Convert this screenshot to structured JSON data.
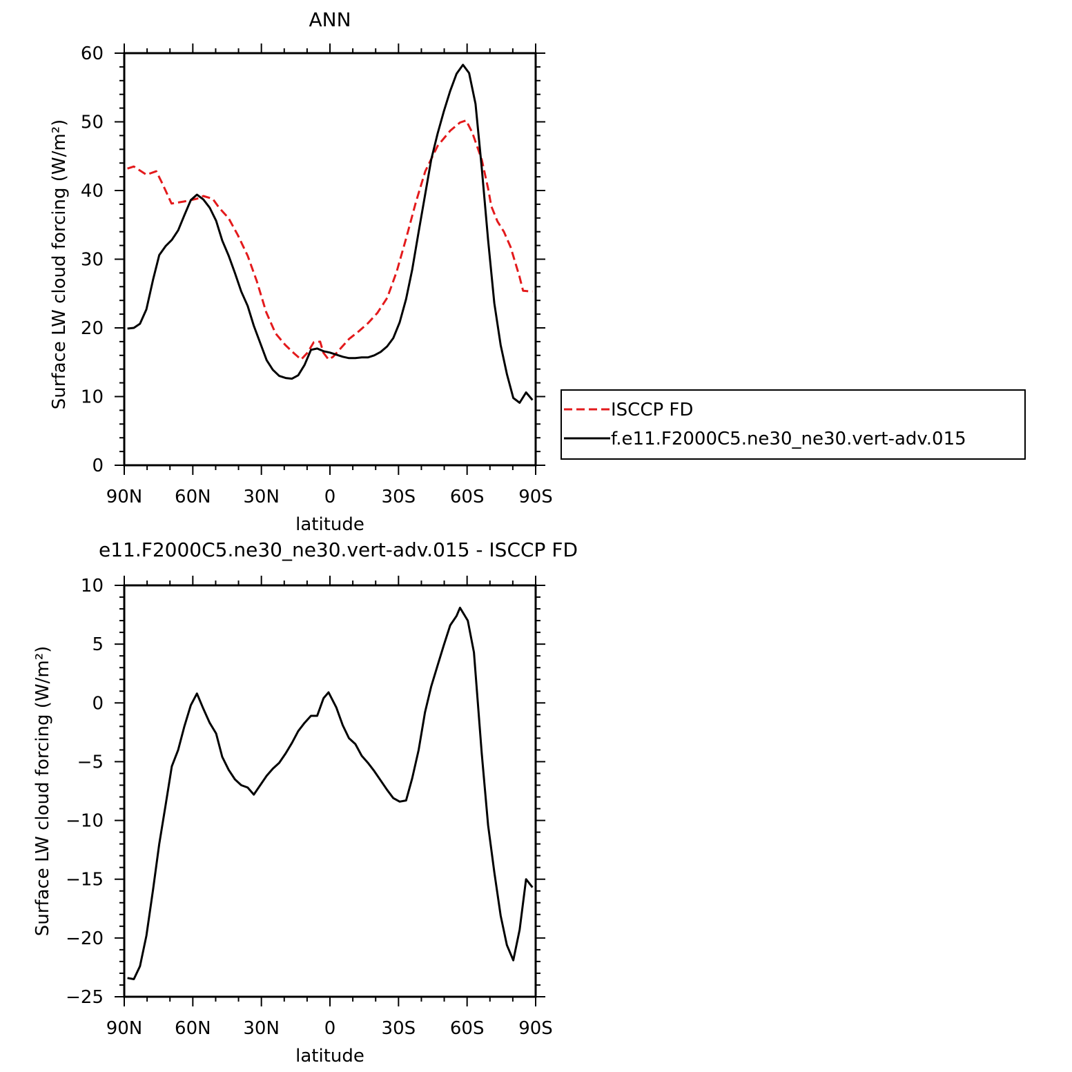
{
  "chart_data": [
    {
      "type": "line",
      "title": "ANN",
      "xlabel": "latitude",
      "ylabel": "Surface LW cloud forcing (W/m²)",
      "xlim": [
        90,
        -90
      ],
      "ylim": [
        0,
        60
      ],
      "x_ticks": [
        {
          "value": 90,
          "label": "90N"
        },
        {
          "value": 60,
          "label": "60N"
        },
        {
          "value": 30,
          "label": "30N"
        },
        {
          "value": 0,
          "label": "0"
        },
        {
          "value": -30,
          "label": "30S"
        },
        {
          "value": -60,
          "label": "60S"
        },
        {
          "value": -90,
          "label": "90S"
        }
      ],
      "y_ticks": [
        {
          "value": 0,
          "label": "0"
        },
        {
          "value": 10,
          "label": "10"
        },
        {
          "value": 20,
          "label": "20"
        },
        {
          "value": 30,
          "label": "30"
        },
        {
          "value": 40,
          "label": "40"
        },
        {
          "value": 50,
          "label": "50"
        },
        {
          "value": 60,
          "label": "60"
        }
      ],
      "legend_position": "right",
      "series": [
        {
          "name": "ISCCP FD",
          "color": "#e31a1c",
          "dash": "dashed",
          "points": [
            [
              88.6,
              43.2
            ],
            [
              85.8,
              43.5
            ],
            [
              80.3,
              42.3
            ],
            [
              76.0,
              42.8
            ],
            [
              73.3,
              41.0
            ],
            [
              69.3,
              38.1
            ],
            [
              63.8,
              38.4
            ],
            [
              58.2,
              38.8
            ],
            [
              55.4,
              39.2
            ],
            [
              51.3,
              38.8
            ],
            [
              48.5,
              37.5
            ],
            [
              44.4,
              36.0
            ],
            [
              40.3,
              33.5
            ],
            [
              36.0,
              30.5
            ],
            [
              32.0,
              26.8
            ],
            [
              27.9,
              22.3
            ],
            [
              23.8,
              19.2
            ],
            [
              19.5,
              17.5
            ],
            [
              15.4,
              16.2
            ],
            [
              12.6,
              15.4
            ],
            [
              9.8,
              16.4
            ],
            [
              7.1,
              17.9
            ],
            [
              4.3,
              18.0
            ],
            [
              2.9,
              16.4
            ],
            [
              0.6,
              15.4
            ],
            [
              -1.4,
              15.8
            ],
            [
              -4.1,
              16.8
            ],
            [
              -8.4,
              18.4
            ],
            [
              -12.6,
              19.5
            ],
            [
              -16.7,
              20.7
            ],
            [
              -20.8,
              22.2
            ],
            [
              -25.1,
              24.4
            ],
            [
              -29.2,
              28.2
            ],
            [
              -33.3,
              33.0
            ],
            [
              -37.6,
              38.3
            ],
            [
              -41.7,
              42.8
            ],
            [
              -47.1,
              46.5
            ],
            [
              -52.6,
              48.7
            ],
            [
              -56.9,
              49.9
            ],
            [
              -59.6,
              50.2
            ],
            [
              -62.3,
              48.4
            ],
            [
              -66.4,
              44.5
            ],
            [
              -69.2,
              40.3
            ],
            [
              -70.6,
              37.7
            ],
            [
              -73.3,
              35.5
            ],
            [
              -76.1,
              34.0
            ],
            [
              -79.0,
              31.8
            ],
            [
              -82.9,
              27.5
            ],
            [
              -84.5,
              25.4
            ],
            [
              -88.6,
              25.3
            ]
          ]
        },
        {
          "name": "f.e11.F2000C5.ne30_ne30.vert-adv.015",
          "color": "#000000",
          "dash": "solid",
          "points": [
            [
              88.6,
              19.9
            ],
            [
              85.8,
              20.0
            ],
            [
              83.1,
              20.6
            ],
            [
              80.3,
              22.7
            ],
            [
              77.4,
              27.0
            ],
            [
              74.7,
              30.6
            ],
            [
              71.9,
              31.9
            ],
            [
              69.2,
              32.8
            ],
            [
              66.4,
              34.2
            ],
            [
              63.7,
              36.4
            ],
            [
              60.9,
              38.6
            ],
            [
              58.2,
              39.4
            ],
            [
              55.4,
              38.7
            ],
            [
              52.6,
              37.5
            ],
            [
              49.8,
              35.6
            ],
            [
              47.1,
              32.7
            ],
            [
              44.3,
              30.5
            ],
            [
              41.6,
              28.0
            ],
            [
              38.8,
              25.3
            ],
            [
              36.0,
              23.2
            ],
            [
              33.3,
              20.3
            ],
            [
              30.5,
              17.8
            ],
            [
              27.7,
              15.3
            ],
            [
              25.0,
              13.9
            ],
            [
              22.2,
              13.0
            ],
            [
              19.4,
              12.7
            ],
            [
              16.6,
              12.6
            ],
            [
              13.9,
              13.1
            ],
            [
              11.1,
              14.6
            ],
            [
              8.3,
              16.8
            ],
            [
              5.6,
              17.0
            ],
            [
              2.8,
              16.6
            ],
            [
              0.0,
              16.4
            ],
            [
              -2.8,
              16.1
            ],
            [
              -5.6,
              15.8
            ],
            [
              -8.3,
              15.6
            ],
            [
              -11.1,
              15.6
            ],
            [
              -13.9,
              15.7
            ],
            [
              -16.6,
              15.7
            ],
            [
              -19.4,
              16.0
            ],
            [
              -22.2,
              16.5
            ],
            [
              -25.0,
              17.3
            ],
            [
              -27.7,
              18.5
            ],
            [
              -30.5,
              20.8
            ],
            [
              -33.3,
              24.2
            ],
            [
              -36.0,
              28.5
            ],
            [
              -38.8,
              34.0
            ],
            [
              -41.6,
              39.3
            ],
            [
              -44.3,
              44.5
            ],
            [
              -47.1,
              48.3
            ],
            [
              -49.8,
              51.5
            ],
            [
              -52.6,
              54.5
            ],
            [
              -55.4,
              57.0
            ],
            [
              -58.2,
              58.3
            ],
            [
              -60.9,
              57.1
            ],
            [
              -63.7,
              52.6
            ],
            [
              -66.4,
              43.3
            ],
            [
              -69.2,
              32.8
            ],
            [
              -71.9,
              23.6
            ],
            [
              -74.7,
              17.5
            ],
            [
              -77.4,
              13.3
            ],
            [
              -80.2,
              9.8
            ],
            [
              -83.0,
              9.1
            ],
            [
              -85.8,
              10.6
            ],
            [
              -88.6,
              9.5
            ]
          ]
        }
      ]
    },
    {
      "type": "line",
      "title": "e11.F2000C5.ne30_ne30.vert-adv.015 - ISCCP FD",
      "xlabel": "latitude",
      "ylabel": "Surface LW cloud forcing (W/m²)",
      "xlim": [
        90,
        -90
      ],
      "ylim": [
        -25,
        10
      ],
      "x_ticks": [
        {
          "value": 90,
          "label": "90N"
        },
        {
          "value": 60,
          "label": "60N"
        },
        {
          "value": 30,
          "label": "30N"
        },
        {
          "value": 0,
          "label": "0"
        },
        {
          "value": -30,
          "label": "30S"
        },
        {
          "value": -60,
          "label": "60S"
        },
        {
          "value": -90,
          "label": "90S"
        }
      ],
      "y_ticks": [
        {
          "value": -25,
          "label": "−25"
        },
        {
          "value": -20,
          "label": "−20"
        },
        {
          "value": -15,
          "label": "−15"
        },
        {
          "value": -10,
          "label": "−10"
        },
        {
          "value": -5,
          "label": "−5"
        },
        {
          "value": 0,
          "label": "0"
        },
        {
          "value": 5,
          "label": "5"
        },
        {
          "value": 10,
          "label": "10"
        }
      ],
      "series": [
        {
          "color": "#000000",
          "dash": "solid",
          "points": [
            [
              88.6,
              -23.4
            ],
            [
              85.8,
              -23.5
            ],
            [
              83.1,
              -22.4
            ],
            [
              80.3,
              -19.8
            ],
            [
              77.4,
              -15.9
            ],
            [
              74.7,
              -12.0
            ],
            [
              71.9,
              -8.7
            ],
            [
              69.2,
              -5.4
            ],
            [
              66.4,
              -4.0
            ],
            [
              63.7,
              -2.0
            ],
            [
              60.9,
              -0.2
            ],
            [
              58.2,
              0.8
            ],
            [
              55.4,
              -0.5
            ],
            [
              52.6,
              -1.7
            ],
            [
              49.8,
              -2.6
            ],
            [
              47.1,
              -4.6
            ],
            [
              44.3,
              -5.7
            ],
            [
              41.6,
              -6.5
            ],
            [
              38.8,
              -7.0
            ],
            [
              36.0,
              -7.2
            ],
            [
              33.3,
              -7.8
            ],
            [
              30.5,
              -7.0
            ],
            [
              27.7,
              -6.2
            ],
            [
              25.0,
              -5.6
            ],
            [
              22.2,
              -5.1
            ],
            [
              19.4,
              -4.3
            ],
            [
              16.6,
              -3.4
            ],
            [
              13.9,
              -2.4
            ],
            [
              11.1,
              -1.7
            ],
            [
              8.3,
              -1.1
            ],
            [
              5.6,
              -1.1
            ],
            [
              2.8,
              0.4
            ],
            [
              0.6,
              0.9
            ],
            [
              -2.8,
              -0.4
            ],
            [
              -5.6,
              -1.9
            ],
            [
              -8.3,
              -3.0
            ],
            [
              -11.1,
              -3.5
            ],
            [
              -13.9,
              -4.5
            ],
            [
              -16.6,
              -5.1
            ],
            [
              -19.4,
              -5.8
            ],
            [
              -22.2,
              -6.6
            ],
            [
              -25.0,
              -7.4
            ],
            [
              -27.7,
              -8.1
            ],
            [
              -30.5,
              -8.4
            ],
            [
              -33.3,
              -8.3
            ],
            [
              -36.0,
              -6.4
            ],
            [
              -38.8,
              -4.0
            ],
            [
              -41.6,
              -0.8
            ],
            [
              -44.3,
              1.4
            ],
            [
              -47.1,
              3.2
            ],
            [
              -49.8,
              4.9
            ],
            [
              -52.6,
              6.6
            ],
            [
              -55.4,
              7.4
            ],
            [
              -56.9,
              8.1
            ],
            [
              -60.3,
              7.0
            ],
            [
              -63.0,
              4.3
            ],
            [
              -66.4,
              -4.3
            ],
            [
              -69.2,
              -10.4
            ],
            [
              -71.9,
              -14.4
            ],
            [
              -74.7,
              -18.1
            ],
            [
              -77.4,
              -20.6
            ],
            [
              -80.2,
              -21.9
            ],
            [
              -83.0,
              -19.3
            ],
            [
              -85.8,
              -15.0
            ],
            [
              -88.6,
              -15.7
            ]
          ]
        }
      ]
    }
  ]
}
